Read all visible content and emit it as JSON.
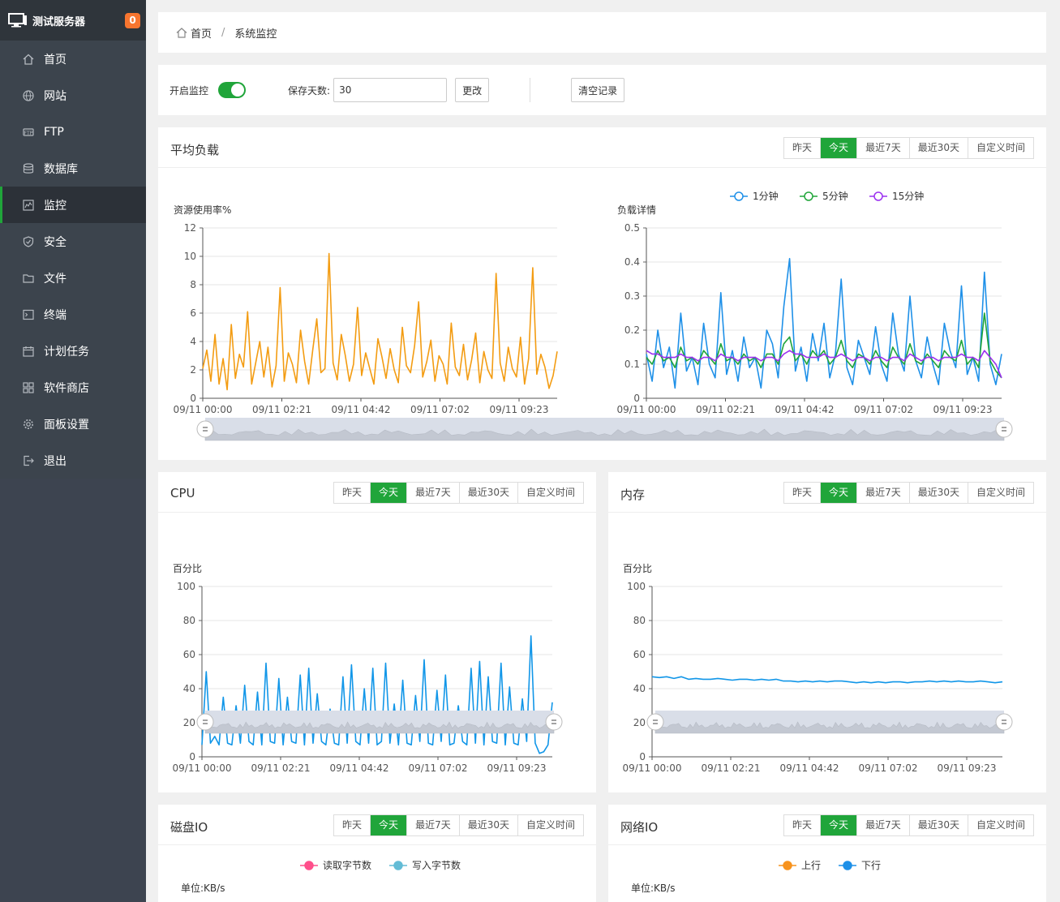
{
  "server": {
    "name": "测试服务器",
    "badge": "0"
  },
  "menu": [
    {
      "label": "首页",
      "icon": "home-icon"
    },
    {
      "label": "网站",
      "icon": "globe-icon"
    },
    {
      "label": "FTP",
      "icon": "ftp-icon"
    },
    {
      "label": "数据库",
      "icon": "database-icon"
    },
    {
      "label": "监控",
      "icon": "monitor-chart-icon",
      "active": true
    },
    {
      "label": "安全",
      "icon": "shield-icon"
    },
    {
      "label": "文件",
      "icon": "folder-icon"
    },
    {
      "label": "终端",
      "icon": "terminal-icon"
    },
    {
      "label": "计划任务",
      "icon": "calendar-icon"
    },
    {
      "label": "软件商店",
      "icon": "apps-grid-icon"
    },
    {
      "label": "面板设置",
      "icon": "gear-icon"
    },
    {
      "label": "退出",
      "icon": "logout-icon"
    }
  ],
  "breadcrumb": {
    "home": "首页",
    "separator": "/",
    "current": "系统监控"
  },
  "controls": {
    "monitor_label": "开启监控",
    "monitor_enabled": true,
    "save_days_label": "保存天数:",
    "save_days_value": "30",
    "change_button": "更改",
    "clear_button": "清空记录"
  },
  "tabs": [
    "昨天",
    "今天",
    "最近7天",
    "最近30天",
    "自定义时间"
  ],
  "active_tab": "今天",
  "colors": {
    "accent": "#20a53a",
    "orange": "#f39c12",
    "blue": "#1e90e8",
    "green": "#20a53a",
    "purple": "#9b30f0",
    "cpu": "#1196e8",
    "pink": "#ff4f8b",
    "teal": "#63bcd6"
  },
  "cards": {
    "load": {
      "title": "平均负载"
    },
    "cpu": {
      "title": "CPU"
    },
    "mem": {
      "title": "内存"
    },
    "disk": {
      "title": "磁盘IO"
    },
    "net": {
      "title": "网络IO"
    }
  },
  "chart_data": [
    {
      "id": "load_usage",
      "type": "line",
      "title": "",
      "ylabel": "资源使用率%",
      "ylim": [
        0,
        12
      ],
      "yticks": [
        "0",
        "2",
        "4",
        "6",
        "8",
        "10",
        "12"
      ],
      "xticks": [
        "09/11 00:00",
        "09/11 02:21",
        "09/11 04:42",
        "09/11 07:02",
        "09/11 09:23"
      ],
      "series": [
        {
          "color": "#f39c12",
          "values": [
            2.1,
            3.4,
            1.2,
            4.5,
            1.0,
            2.8,
            0.6,
            5.2,
            1.4,
            3.1,
            2.2,
            6.1,
            1.0,
            2.5,
            4.0,
            1.5,
            3.6,
            0.8,
            2.3,
            7.8,
            1.2,
            3.2,
            2.4,
            1.1,
            4.8,
            2.6,
            1.0,
            3.4,
            5.6,
            1.8,
            2.1,
            10.2,
            2.5,
            1.3,
            4.5,
            3.0,
            1.2,
            2.4,
            6.4,
            1.6,
            3.2,
            2.1,
            1.0,
            4.2,
            2.9,
            1.4,
            3.5,
            2.0,
            1.1,
            5.0,
            2.3,
            1.8,
            3.7,
            6.8,
            1.5,
            2.6,
            4.1,
            1.2,
            3.0,
            2.4,
            1.0,
            5.3,
            2.2,
            1.6,
            3.8,
            1.3,
            2.7,
            4.6,
            1.1,
            3.3,
            2.0,
            1.4,
            8.8,
            2.5,
            1.2,
            3.6,
            2.1,
            1.5,
            4.3,
            1.0,
            2.8,
            9.2,
            1.7,
            3.1,
            2.2,
            0.7,
            1.6,
            3.3
          ]
        }
      ]
    },
    {
      "id": "load_detail",
      "type": "line",
      "title": "",
      "ylabel": "负载详情",
      "ylim": [
        0,
        0.5
      ],
      "yticks": [
        "0",
        "0.1",
        "0.2",
        "0.3",
        "0.4",
        "0.5"
      ],
      "xticks": [
        "09/11 00:00",
        "09/11 02:21",
        "09/11 04:42",
        "09/11 07:02",
        "09/11 09:23"
      ],
      "legend": [
        "1分钟",
        "5分钟",
        "15分钟"
      ],
      "series": [
        {
          "name": "1分钟",
          "color": "#1e90e8",
          "values": [
            0.13,
            0.05,
            0.2,
            0.09,
            0.15,
            0.03,
            0.25,
            0.08,
            0.12,
            0.04,
            0.22,
            0.1,
            0.06,
            0.31,
            0.07,
            0.14,
            0.05,
            0.18,
            0.09,
            0.12,
            0.03,
            0.2,
            0.16,
            0.06,
            0.27,
            0.41,
            0.08,
            0.15,
            0.05,
            0.19,
            0.11,
            0.22,
            0.06,
            0.13,
            0.35,
            0.09,
            0.04,
            0.17,
            0.12,
            0.07,
            0.21,
            0.1,
            0.05,
            0.25,
            0.13,
            0.08,
            0.3,
            0.11,
            0.06,
            0.18,
            0.1,
            0.04,
            0.22,
            0.14,
            0.09,
            0.33,
            0.07,
            0.12,
            0.05,
            0.37,
            0.1,
            0.04,
            0.13
          ]
        },
        {
          "name": "5分钟",
          "color": "#20a53a",
          "values": [
            0.12,
            0.1,
            0.14,
            0.11,
            0.12,
            0.09,
            0.15,
            0.11,
            0.12,
            0.1,
            0.14,
            0.12,
            0.1,
            0.16,
            0.11,
            0.12,
            0.1,
            0.13,
            0.11,
            0.12,
            0.09,
            0.13,
            0.13,
            0.1,
            0.16,
            0.18,
            0.11,
            0.13,
            0.1,
            0.14,
            0.12,
            0.14,
            0.1,
            0.12,
            0.17,
            0.11,
            0.09,
            0.13,
            0.12,
            0.1,
            0.14,
            0.11,
            0.09,
            0.15,
            0.12,
            0.1,
            0.16,
            0.11,
            0.1,
            0.13,
            0.11,
            0.09,
            0.14,
            0.12,
            0.11,
            0.17,
            0.1,
            0.12,
            0.09,
            0.25,
            0.11,
            0.08,
            0.06
          ]
        },
        {
          "name": "15分钟",
          "color": "#9b30f0",
          "values": [
            0.14,
            0.13,
            0.13,
            0.12,
            0.12,
            0.12,
            0.13,
            0.12,
            0.12,
            0.11,
            0.12,
            0.12,
            0.11,
            0.13,
            0.12,
            0.12,
            0.11,
            0.12,
            0.12,
            0.12,
            0.11,
            0.12,
            0.12,
            0.11,
            0.13,
            0.14,
            0.13,
            0.13,
            0.12,
            0.12,
            0.12,
            0.13,
            0.12,
            0.12,
            0.13,
            0.12,
            0.11,
            0.12,
            0.12,
            0.11,
            0.12,
            0.12,
            0.11,
            0.12,
            0.12,
            0.11,
            0.13,
            0.12,
            0.11,
            0.12,
            0.12,
            0.11,
            0.12,
            0.12,
            0.12,
            0.13,
            0.12,
            0.12,
            0.11,
            0.14,
            0.12,
            0.1,
            0.06
          ]
        }
      ]
    },
    {
      "id": "cpu",
      "type": "line",
      "title": "",
      "ylabel": "百分比",
      "ylim": [
        0,
        100
      ],
      "yticks": [
        "0",
        "20",
        "40",
        "60",
        "80",
        "100"
      ],
      "xticks": [
        "09/11 00:00",
        "09/11 02:21",
        "09/11 04:42",
        "09/11 07:02",
        "09/11 09:23"
      ],
      "series": [
        {
          "color": "#1196e8",
          "values": [
            7,
            50,
            8,
            12,
            7,
            35,
            8,
            7,
            30,
            8,
            42,
            9,
            7,
            38,
            7,
            55,
            9,
            8,
            46,
            7,
            35,
            9,
            8,
            48,
            7,
            52,
            8,
            37,
            9,
            7,
            28,
            8,
            7,
            47,
            8,
            54,
            9,
            7,
            40,
            8,
            52,
            7,
            9,
            55,
            8,
            31,
            7,
            45,
            8,
            7,
            36,
            9,
            57,
            8,
            7,
            39,
            9,
            48,
            7,
            8,
            30,
            9,
            7,
            52,
            8,
            56,
            7,
            47,
            9,
            8,
            55,
            7,
            41,
            8,
            7,
            34,
            9,
            71,
            8,
            2,
            3,
            7,
            32
          ]
        }
      ]
    },
    {
      "id": "mem",
      "type": "line",
      "title": "",
      "ylabel": "百分比",
      "ylim": [
        0,
        100
      ],
      "yticks": [
        "0",
        "20",
        "40",
        "60",
        "80",
        "100"
      ],
      "xticks": [
        "09/11 00:00",
        "09/11 02:21",
        "09/11 04:42",
        "09/11 07:02",
        "09/11 09:23"
      ],
      "series": [
        {
          "color": "#1196e8",
          "values": [
            47,
            46.5,
            47,
            46,
            47,
            45.5,
            46,
            45.5,
            45.5,
            46,
            45.5,
            45,
            45.5,
            45.5,
            45,
            45.5,
            45,
            45.5,
            44.5,
            44.5,
            44,
            44.5,
            44,
            44.5,
            44,
            44.5,
            44.5,
            44,
            43.5,
            44,
            43.5,
            44,
            43.5,
            44,
            44,
            43.5,
            44,
            44,
            44.5,
            44,
            44.5,
            44,
            44.5,
            44,
            44,
            44.5,
            44,
            43.5,
            44
          ]
        }
      ]
    },
    {
      "id": "disk",
      "type": "line",
      "title": "",
      "ylabel": "单位:KB/s",
      "legend": [
        "读取字节数",
        "写入字节数"
      ],
      "series": [
        {
          "name": "读取字节数",
          "color": "#ff4f8b",
          "values": []
        },
        {
          "name": "写入字节数",
          "color": "#63bcd6",
          "values": []
        }
      ]
    },
    {
      "id": "net",
      "type": "line",
      "title": "",
      "ylabel": "单位:KB/s",
      "legend": [
        "上行",
        "下行"
      ],
      "series": [
        {
          "name": "上行",
          "color": "#f7931e",
          "values": []
        },
        {
          "name": "下行",
          "color": "#1e90e8",
          "values": []
        }
      ]
    }
  ]
}
